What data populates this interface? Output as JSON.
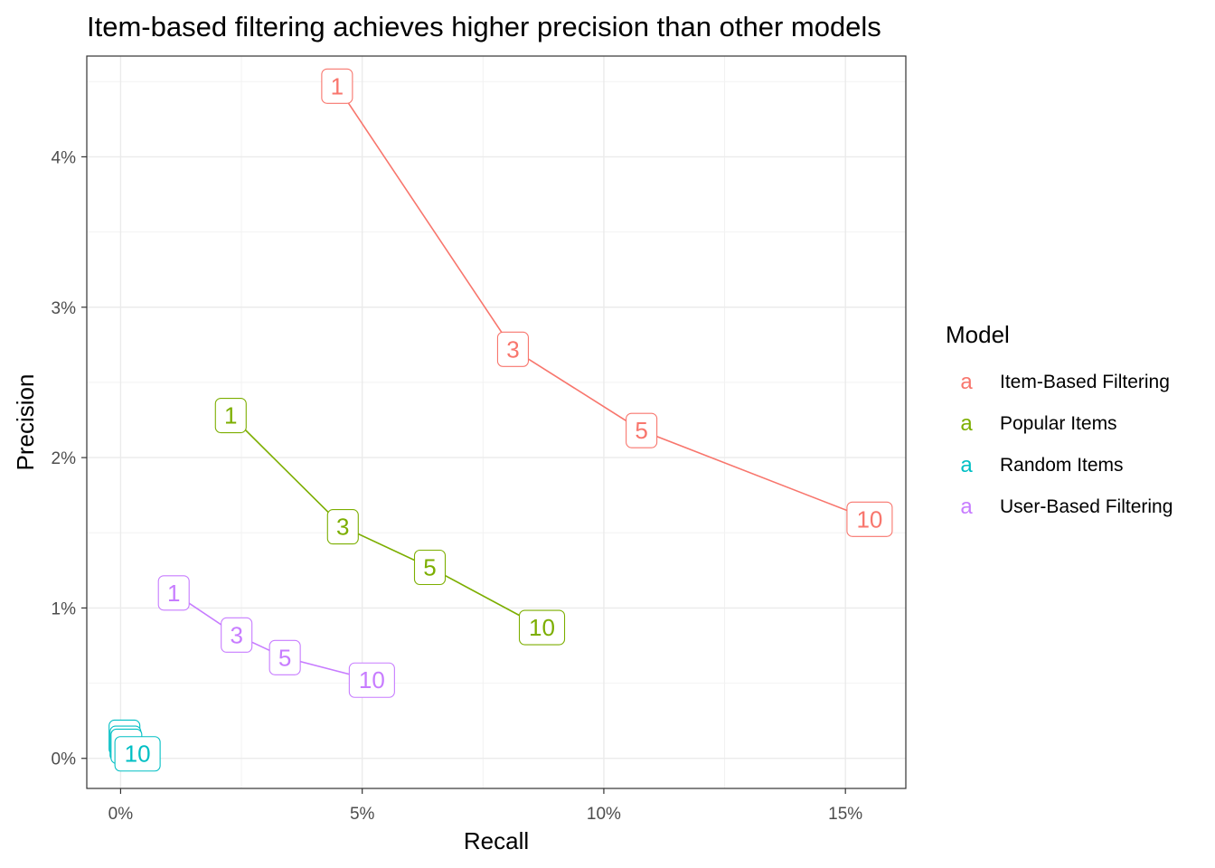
{
  "chart_data": {
    "type": "line",
    "title": "Item-based filtering achieves higher precision than other models",
    "xlabel": "Recall",
    "ylabel": "Precision",
    "xlim": [
      -0.007,
      0.1625
    ],
    "ylim": [
      -0.002,
      0.0467
    ],
    "x_ticks": [
      0,
      0.05,
      0.1,
      0.15
    ],
    "x_tick_labels": [
      "0%",
      "5%",
      "10%",
      "15%"
    ],
    "y_ticks": [
      0,
      0.01,
      0.02,
      0.03,
      0.04
    ],
    "y_tick_labels": [
      "0%",
      "1%",
      "2%",
      "3%",
      "4%"
    ],
    "grid": true,
    "legend": {
      "title": "Model",
      "placement": "right",
      "key_glyph": "a"
    },
    "series": [
      {
        "name": "Item-Based Filtering",
        "color": "#F8766D",
        "points": [
          {
            "label": "1",
            "x": 0.0448,
            "y": 0.0447
          },
          {
            "label": "3",
            "x": 0.0812,
            "y": 0.0272
          },
          {
            "label": "5",
            "x": 0.1078,
            "y": 0.0218
          },
          {
            "label": "10",
            "x": 0.155,
            "y": 0.0159
          }
        ]
      },
      {
        "name": "Popular Items",
        "color": "#7CAE00",
        "points": [
          {
            "label": "1",
            "x": 0.0228,
            "y": 0.0228
          },
          {
            "label": "3",
            "x": 0.046,
            "y": 0.0154
          },
          {
            "label": "5",
            "x": 0.064,
            "y": 0.0127
          },
          {
            "label": "10",
            "x": 0.0872,
            "y": 0.0087
          }
        ]
      },
      {
        "name": "Random Items",
        "color": "#00BFC4",
        "points": [
          {
            "label": "1",
            "x": 0.0008,
            "y": 0.0014
          },
          {
            "label": "3",
            "x": 0.001,
            "y": 0.001
          },
          {
            "label": "5",
            "x": 0.0012,
            "y": 0.0008
          },
          {
            "label": "10",
            "x": 0.0035,
            "y": 0.0003
          }
        ]
      },
      {
        "name": "User-Based Filtering",
        "color": "#C77CFF",
        "points": [
          {
            "label": "1",
            "x": 0.011,
            "y": 0.011
          },
          {
            "label": "3",
            "x": 0.024,
            "y": 0.0082
          },
          {
            "label": "5",
            "x": 0.034,
            "y": 0.0067
          },
          {
            "label": "10",
            "x": 0.052,
            "y": 0.0052
          }
        ]
      }
    ]
  }
}
